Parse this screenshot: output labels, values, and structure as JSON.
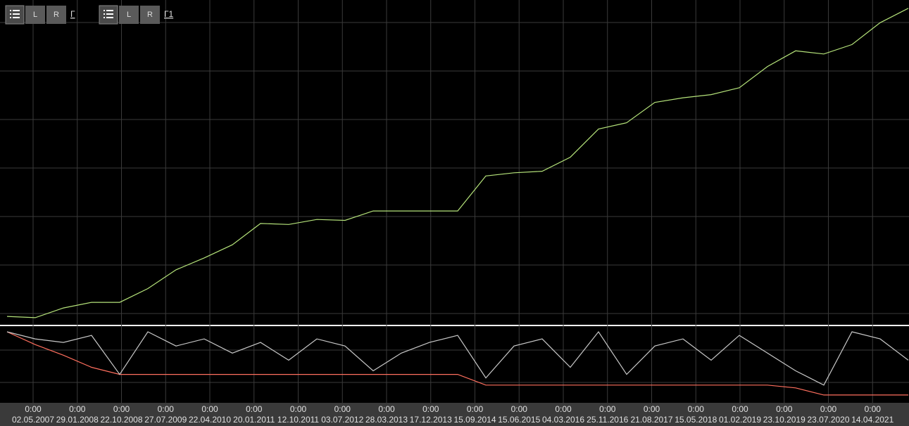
{
  "toolbar": {
    "groups": [
      {
        "buttons": [
          "L",
          "R"
        ],
        "link": "Г"
      },
      {
        "buttons": [
          "L",
          "R"
        ],
        "link": "Г1"
      }
    ]
  },
  "chart": {
    "equity": [
      1.1,
      0.7,
      3.8,
      5.6,
      5.6,
      10,
      16,
      19.8,
      24,
      30.8,
      30.5,
      32.1,
      31.8,
      34.8,
      34.8,
      34.8,
      34.8,
      46,
      47,
      47.5,
      52,
      61,
      63,
      69.5,
      71,
      72,
      74.2,
      81,
      86,
      85,
      88,
      95,
      99.6
    ],
    "oscillator": [
      0,
      10,
      15,
      5,
      60,
      0,
      20,
      10,
      30,
      15,
      40,
      10,
      20,
      55,
      30,
      15,
      5,
      65,
      20,
      10,
      50,
      0,
      60,
      20,
      10,
      40,
      5,
      30,
      55,
      75,
      0,
      10,
      40
    ],
    "drawdown": [
      0,
      18,
      33,
      50,
      60,
      60,
      60,
      60,
      60,
      60,
      60,
      60,
      60,
      60,
      60,
      60,
      60,
      75,
      75,
      75,
      75,
      75,
      75,
      75,
      75,
      75,
      75,
      75,
      79,
      89,
      89,
      89,
      89
    ],
    "x_labels": [
      {
        "time": "0:00",
        "date": "02.05.2007"
      },
      {
        "time": "0:00",
        "date": "29.01.2008"
      },
      {
        "time": "0:00",
        "date": "22.10.2008"
      },
      {
        "time": "0:00",
        "date": "27.07.2009"
      },
      {
        "time": "0:00",
        "date": "22.04.2010"
      },
      {
        "time": "0:00",
        "date": "20.01.2011"
      },
      {
        "time": "0:00",
        "date": "12.10.2011"
      },
      {
        "time": "0:00",
        "date": "03.07.2012"
      },
      {
        "time": "0:00",
        "date": "28.03.2013"
      },
      {
        "time": "0:00",
        "date": "17.12.2013"
      },
      {
        "time": "0:00",
        "date": "15.09.2014"
      },
      {
        "time": "0:00",
        "date": "15.06.2015"
      },
      {
        "time": "0:00",
        "date": "04.03.2016"
      },
      {
        "time": "0:00",
        "date": "25.11.2016"
      },
      {
        "time": "0:00",
        "date": "21.08.2017"
      },
      {
        "time": "0:00",
        "date": "15.05.2018"
      },
      {
        "time": "0:00",
        "date": "01.02.2019"
      },
      {
        "time": "0:00",
        "date": "23.10.2019"
      },
      {
        "time": "0:00",
        "date": "23.07.2020"
      },
      {
        "time": "0:00",
        "date": "14.04.2021"
      }
    ]
  }
}
